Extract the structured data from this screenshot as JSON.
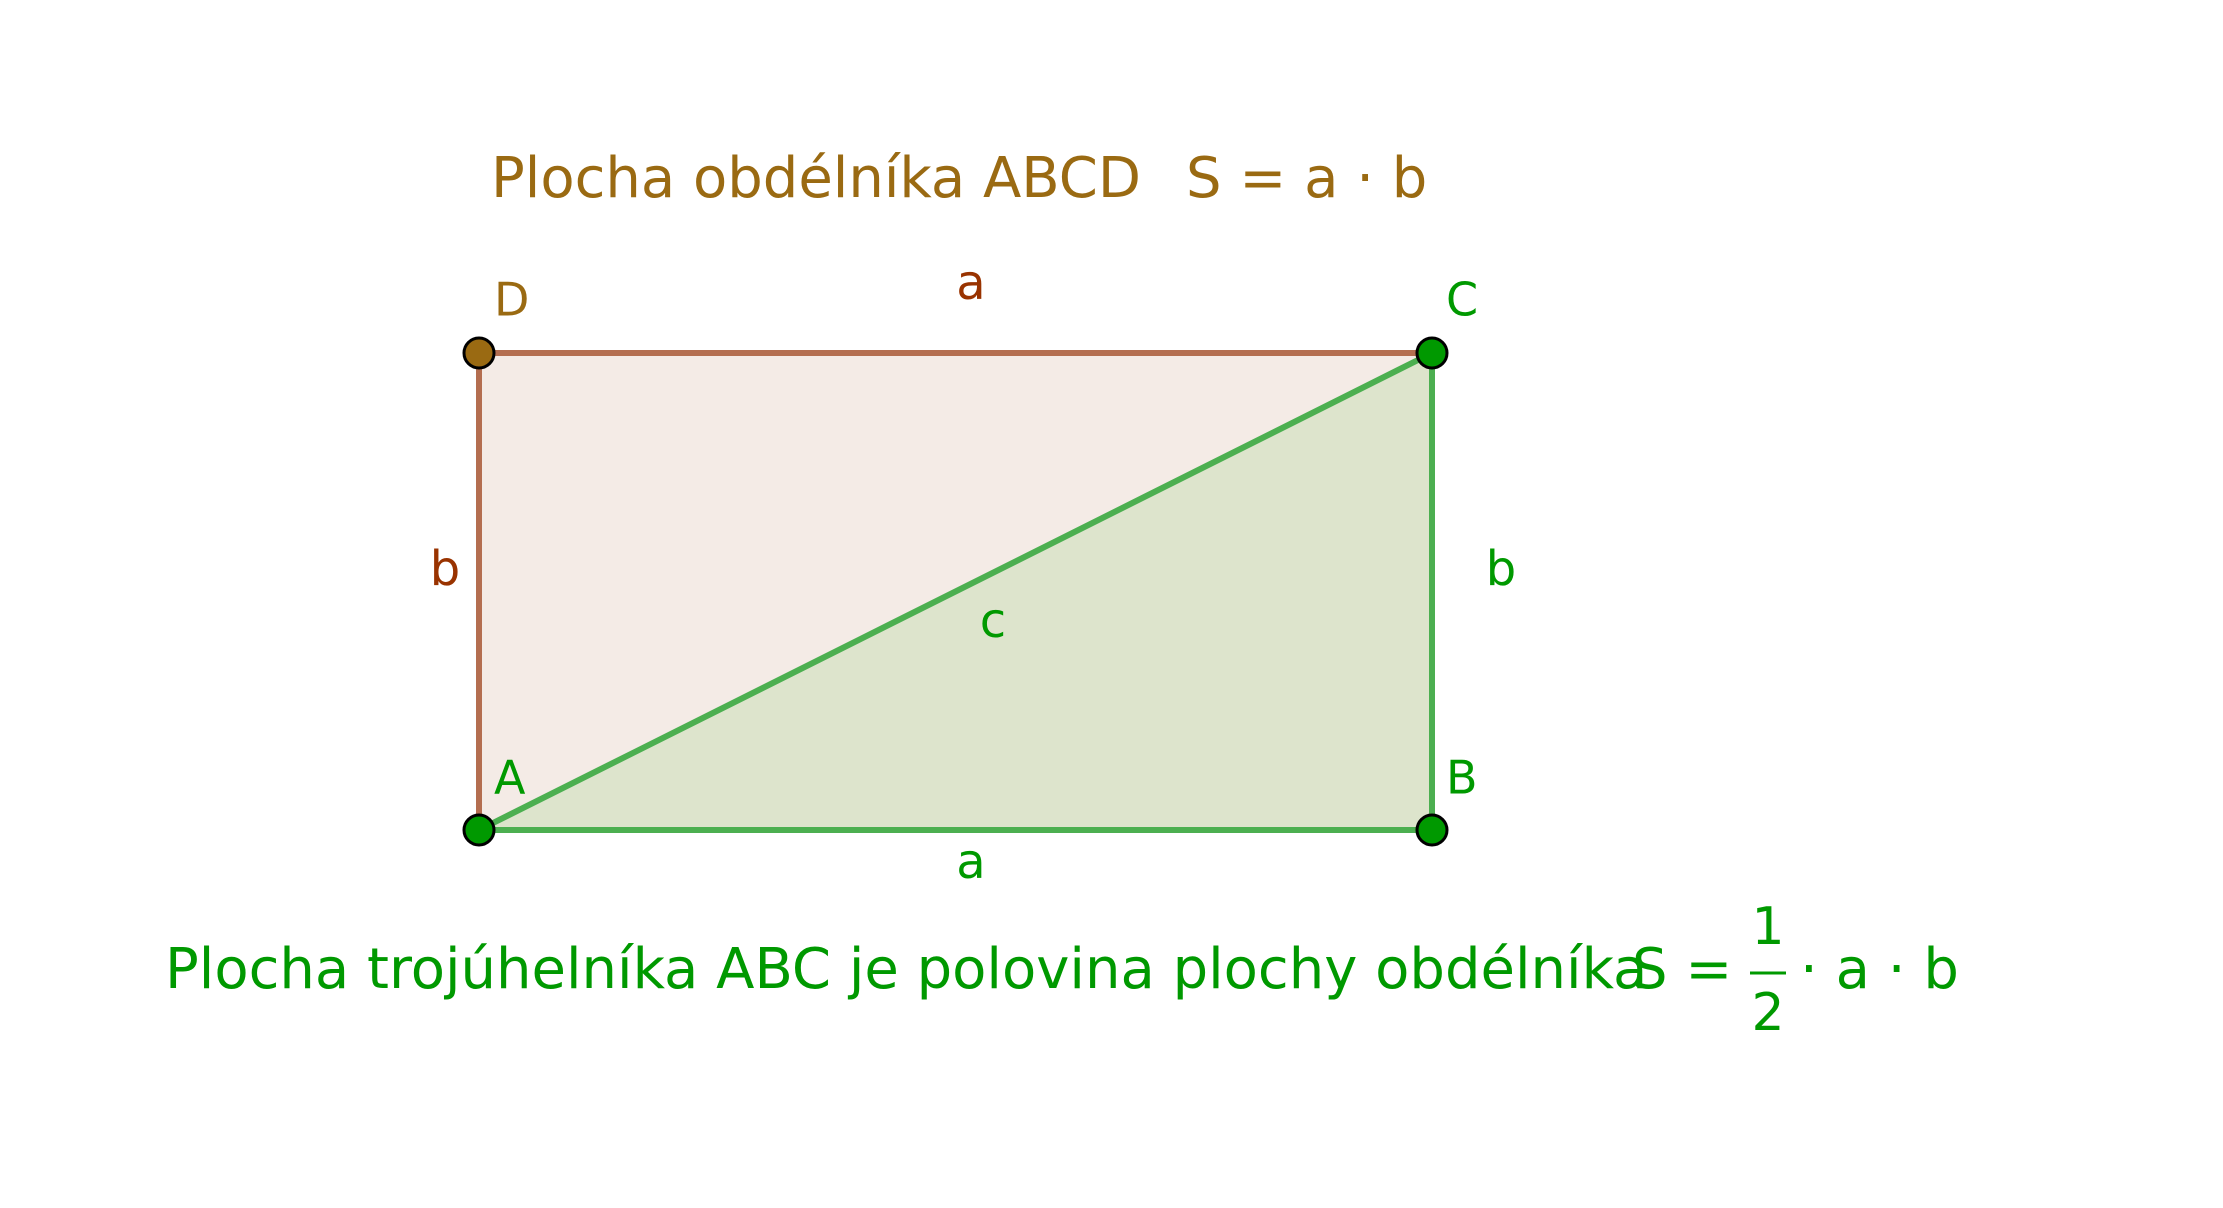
{
  "header": {
    "title": "Plocha obdélníka ABCD",
    "formula": "S = a · b"
  },
  "points": {
    "A": "A",
    "B": "B",
    "C": "C",
    "D": "D"
  },
  "sides": {
    "rect_top": "a",
    "rect_left": "b",
    "tri_right": "b",
    "tri_bottom": "a",
    "tri_hyp": "c"
  },
  "footer": {
    "text": "Plocha trojúhelníka ABC je polovina plochy obdélníka",
    "formula_left": "S =",
    "numerator": "1",
    "denominator": "2",
    "formula_right": "· a · b"
  }
}
